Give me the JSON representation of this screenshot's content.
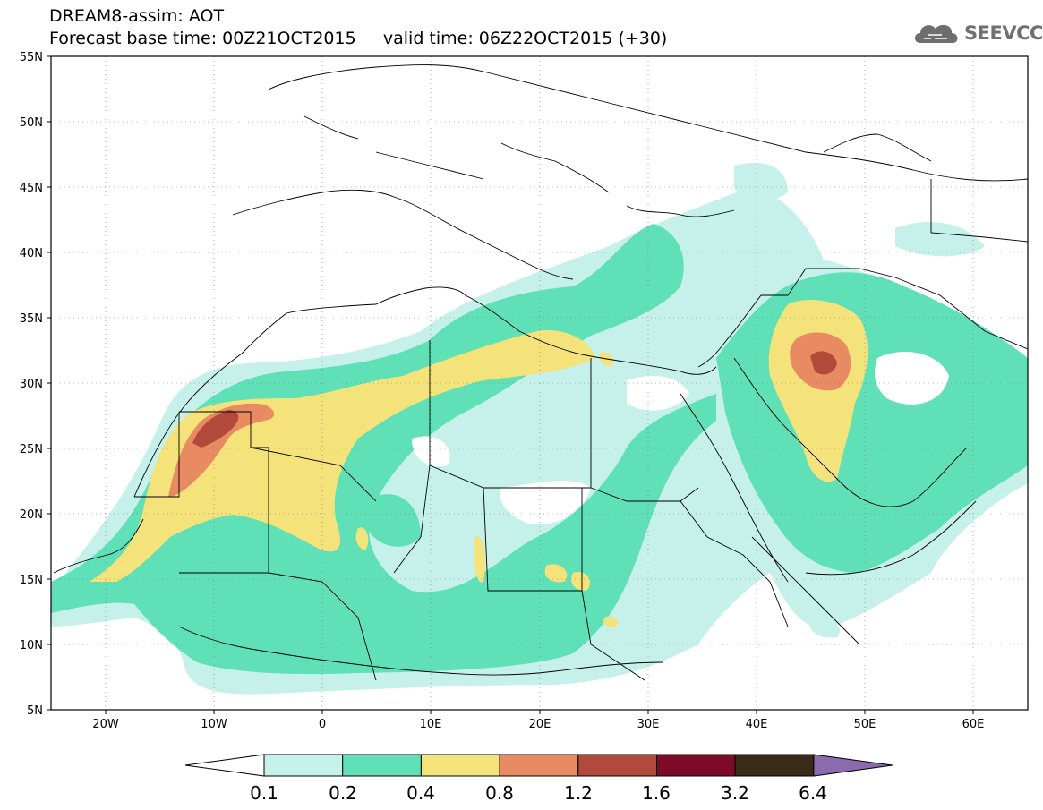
{
  "header": {
    "model_title": "DREAM8-assim: AOT",
    "base_time_label": "Forecast base time: 00Z21OCT2015",
    "valid_time_label": "valid time: 06Z22OCT2015 (+30)"
  },
  "logo": {
    "text": "SEEVCCC",
    "icon": "cloud-icon"
  },
  "map": {
    "lon_range": [
      -25,
      65
    ],
    "lat_range": [
      5,
      55
    ],
    "lat_ticks": [
      "55N",
      "50N",
      "45N",
      "40N",
      "35N",
      "30N",
      "25N",
      "20N",
      "15N",
      "10N",
      "5N"
    ],
    "lon_ticks": [
      "20W",
      "10W",
      "0",
      "10E",
      "20E",
      "30E",
      "40E",
      "50E",
      "60E"
    ]
  },
  "colorbar": {
    "labels": [
      "0.1",
      "0.2",
      "0.4",
      "0.8",
      "1.2",
      "1.6",
      "3.2",
      "6.4"
    ],
    "colors": [
      "#ffffff",
      "#c6f1ea",
      "#5fe0b6",
      "#f4e27a",
      "#e88b62",
      "#b24a3c",
      "#7e0a2a",
      "#3a2a18",
      "#8b6bad"
    ]
  }
}
